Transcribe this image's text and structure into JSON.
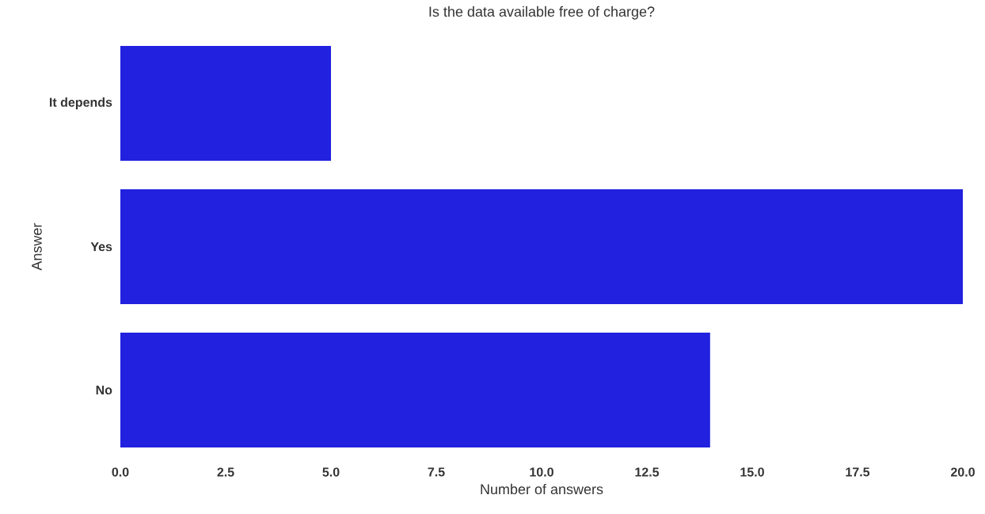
{
  "chart_data": {
    "type": "bar",
    "orientation": "horizontal",
    "title": "Is the data available free of charge?",
    "xlabel": "Number of answers",
    "ylabel": "Answer",
    "categories": [
      "It depends",
      "Yes",
      "No"
    ],
    "values": [
      5,
      20,
      14
    ],
    "color": "#2121df",
    "xlim": [
      0,
      20
    ],
    "xticks": [
      {
        "value": 0,
        "label": "0.0"
      },
      {
        "value": 2.5,
        "label": "2.5"
      },
      {
        "value": 5,
        "label": "5.0"
      },
      {
        "value": 7.5,
        "label": "7.5"
      },
      {
        "value": 10,
        "label": "10.0"
      },
      {
        "value": 12.5,
        "label": "12.5"
      },
      {
        "value": 15,
        "label": "15.0"
      },
      {
        "value": 17.5,
        "label": "17.5"
      },
      {
        "value": 20,
        "label": "20.0"
      }
    ]
  }
}
